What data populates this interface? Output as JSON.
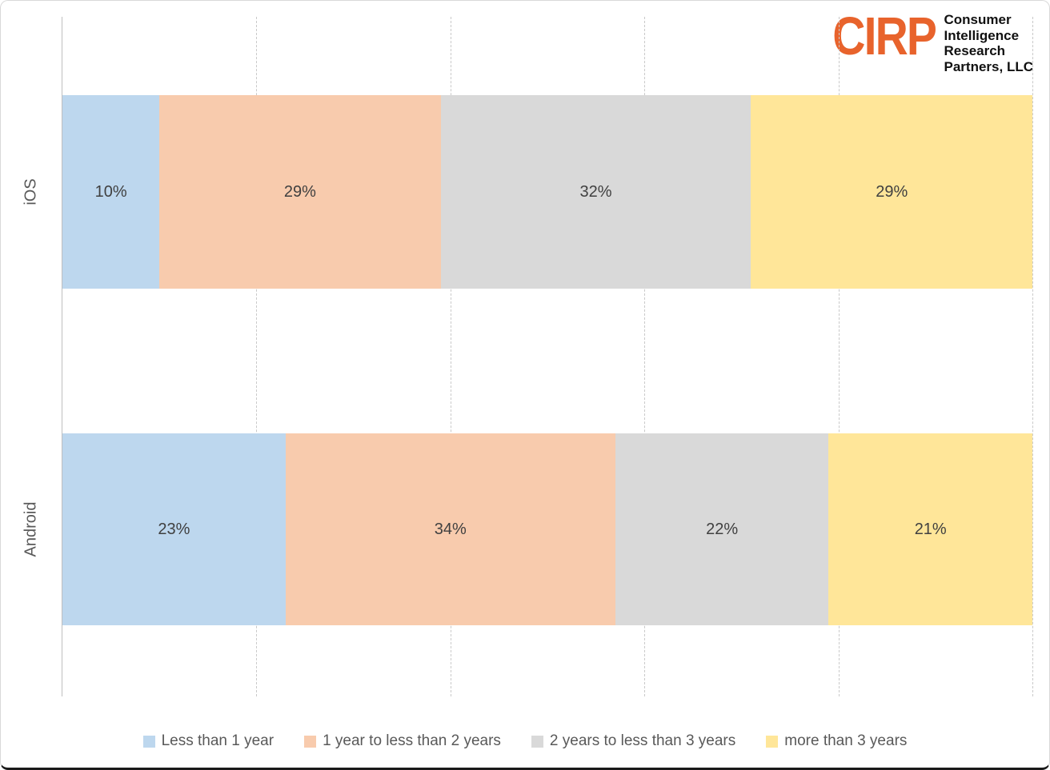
{
  "logo": {
    "text": "CIRP",
    "color": "#E8632C",
    "subtitle_lines": [
      "Consumer",
      "Intelligence",
      "Research",
      "Partners, LLC"
    ]
  },
  "chart_data": {
    "type": "bar",
    "subtype": "horizontal-stacked",
    "categories": [
      "iOS",
      "Android"
    ],
    "series": [
      {
        "name": "Less than 1 year",
        "color": "#BDD7EE",
        "values": [
          10,
          23
        ]
      },
      {
        "name": "1 year to less than 2 years",
        "color": "#F8CBAD",
        "values": [
          29,
          34
        ]
      },
      {
        "name": "2 years to less than 3 years",
        "color": "#D9D9D9",
        "values": [
          32,
          22
        ]
      },
      {
        "name": "more than 3 years",
        "color": "#FFE699",
        "values": [
          29,
          21
        ]
      }
    ],
    "value_label_suffix": "%",
    "xlim": [
      0,
      100
    ],
    "gridline_step": 20,
    "grid": true,
    "legend_position": "bottom",
    "title": "",
    "xlabel": "",
    "ylabel": ""
  }
}
